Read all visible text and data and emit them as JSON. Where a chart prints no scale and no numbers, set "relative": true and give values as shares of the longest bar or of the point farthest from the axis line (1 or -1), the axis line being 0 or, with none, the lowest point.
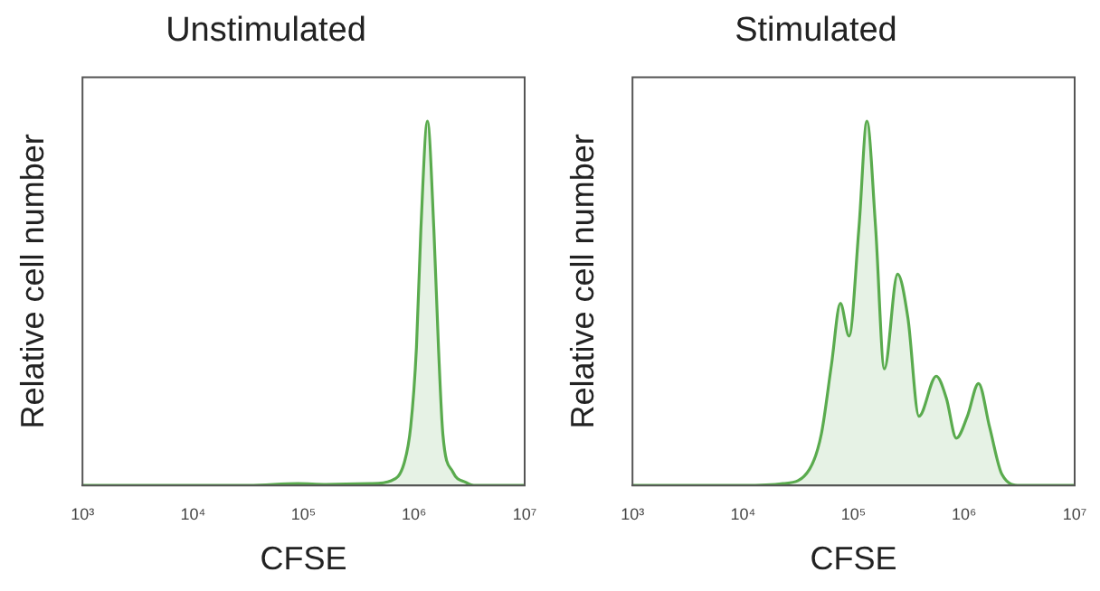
{
  "chart_data": [
    {
      "type": "area",
      "title": "Unstimulated",
      "xlabel": "CFSE",
      "ylabel": "Relative cell number",
      "log": "x",
      "relative": true,
      "color": "#5aab4e",
      "x": [
        1000,
        32000,
        89000,
        160000,
        400000,
        620000,
        810000,
        930000,
        1050000,
        1150000,
        1320000,
        1510000,
        1660000,
        1820000,
        2240000,
        2950000,
        3470000,
        10000000
      ],
      "values": [
        0,
        0,
        0.005,
        0.003,
        0.005,
        0.013,
        0.06,
        0.16,
        0.38,
        0.7,
        1,
        0.7,
        0.38,
        0.14,
        0.037,
        0.008,
        0,
        0
      ],
      "xlim": [
        1000,
        10000000
      ],
      "xticks": [
        {
          "value": 1000,
          "label": "10³"
        },
        {
          "value": 10000,
          "label": "10⁴"
        },
        {
          "value": 100000,
          "label": "10⁵"
        },
        {
          "value": 1000000,
          "label": "10⁶"
        },
        {
          "value": 10000000,
          "label": "10⁷"
        }
      ]
    },
    {
      "type": "area",
      "title": "Stimulated",
      "xlabel": "CFSE",
      "ylabel": "Relative cell number",
      "log": "x",
      "relative": true,
      "color": "#5aab4e",
      "x": [
        1000,
        10000,
        23000,
        40000,
        51000,
        63000,
        76000,
        91000,
        112000,
        132000,
        158000,
        190000,
        250000,
        310000,
        390000,
        560000,
        690000,
        850000,
        1070000,
        1350000,
        1700000,
        2200000,
        3200000,
        10000000
      ],
      "values": [
        0,
        0,
        0.005,
        0.045,
        0.14,
        0.33,
        0.5,
        0.41,
        0.71,
        1,
        0.71,
        0.32,
        0.58,
        0.46,
        0.19,
        0.3,
        0.24,
        0.13,
        0.19,
        0.28,
        0.16,
        0.03,
        0,
        0
      ],
      "xlim": [
        1000,
        10000000
      ],
      "xticks": [
        {
          "value": 1000,
          "label": "10³"
        },
        {
          "value": 10000,
          "label": "10⁴"
        },
        {
          "value": 100000,
          "label": "10⁵"
        },
        {
          "value": 1000000,
          "label": "10⁶"
        },
        {
          "value": 10000000,
          "label": "10⁷"
        }
      ]
    }
  ]
}
